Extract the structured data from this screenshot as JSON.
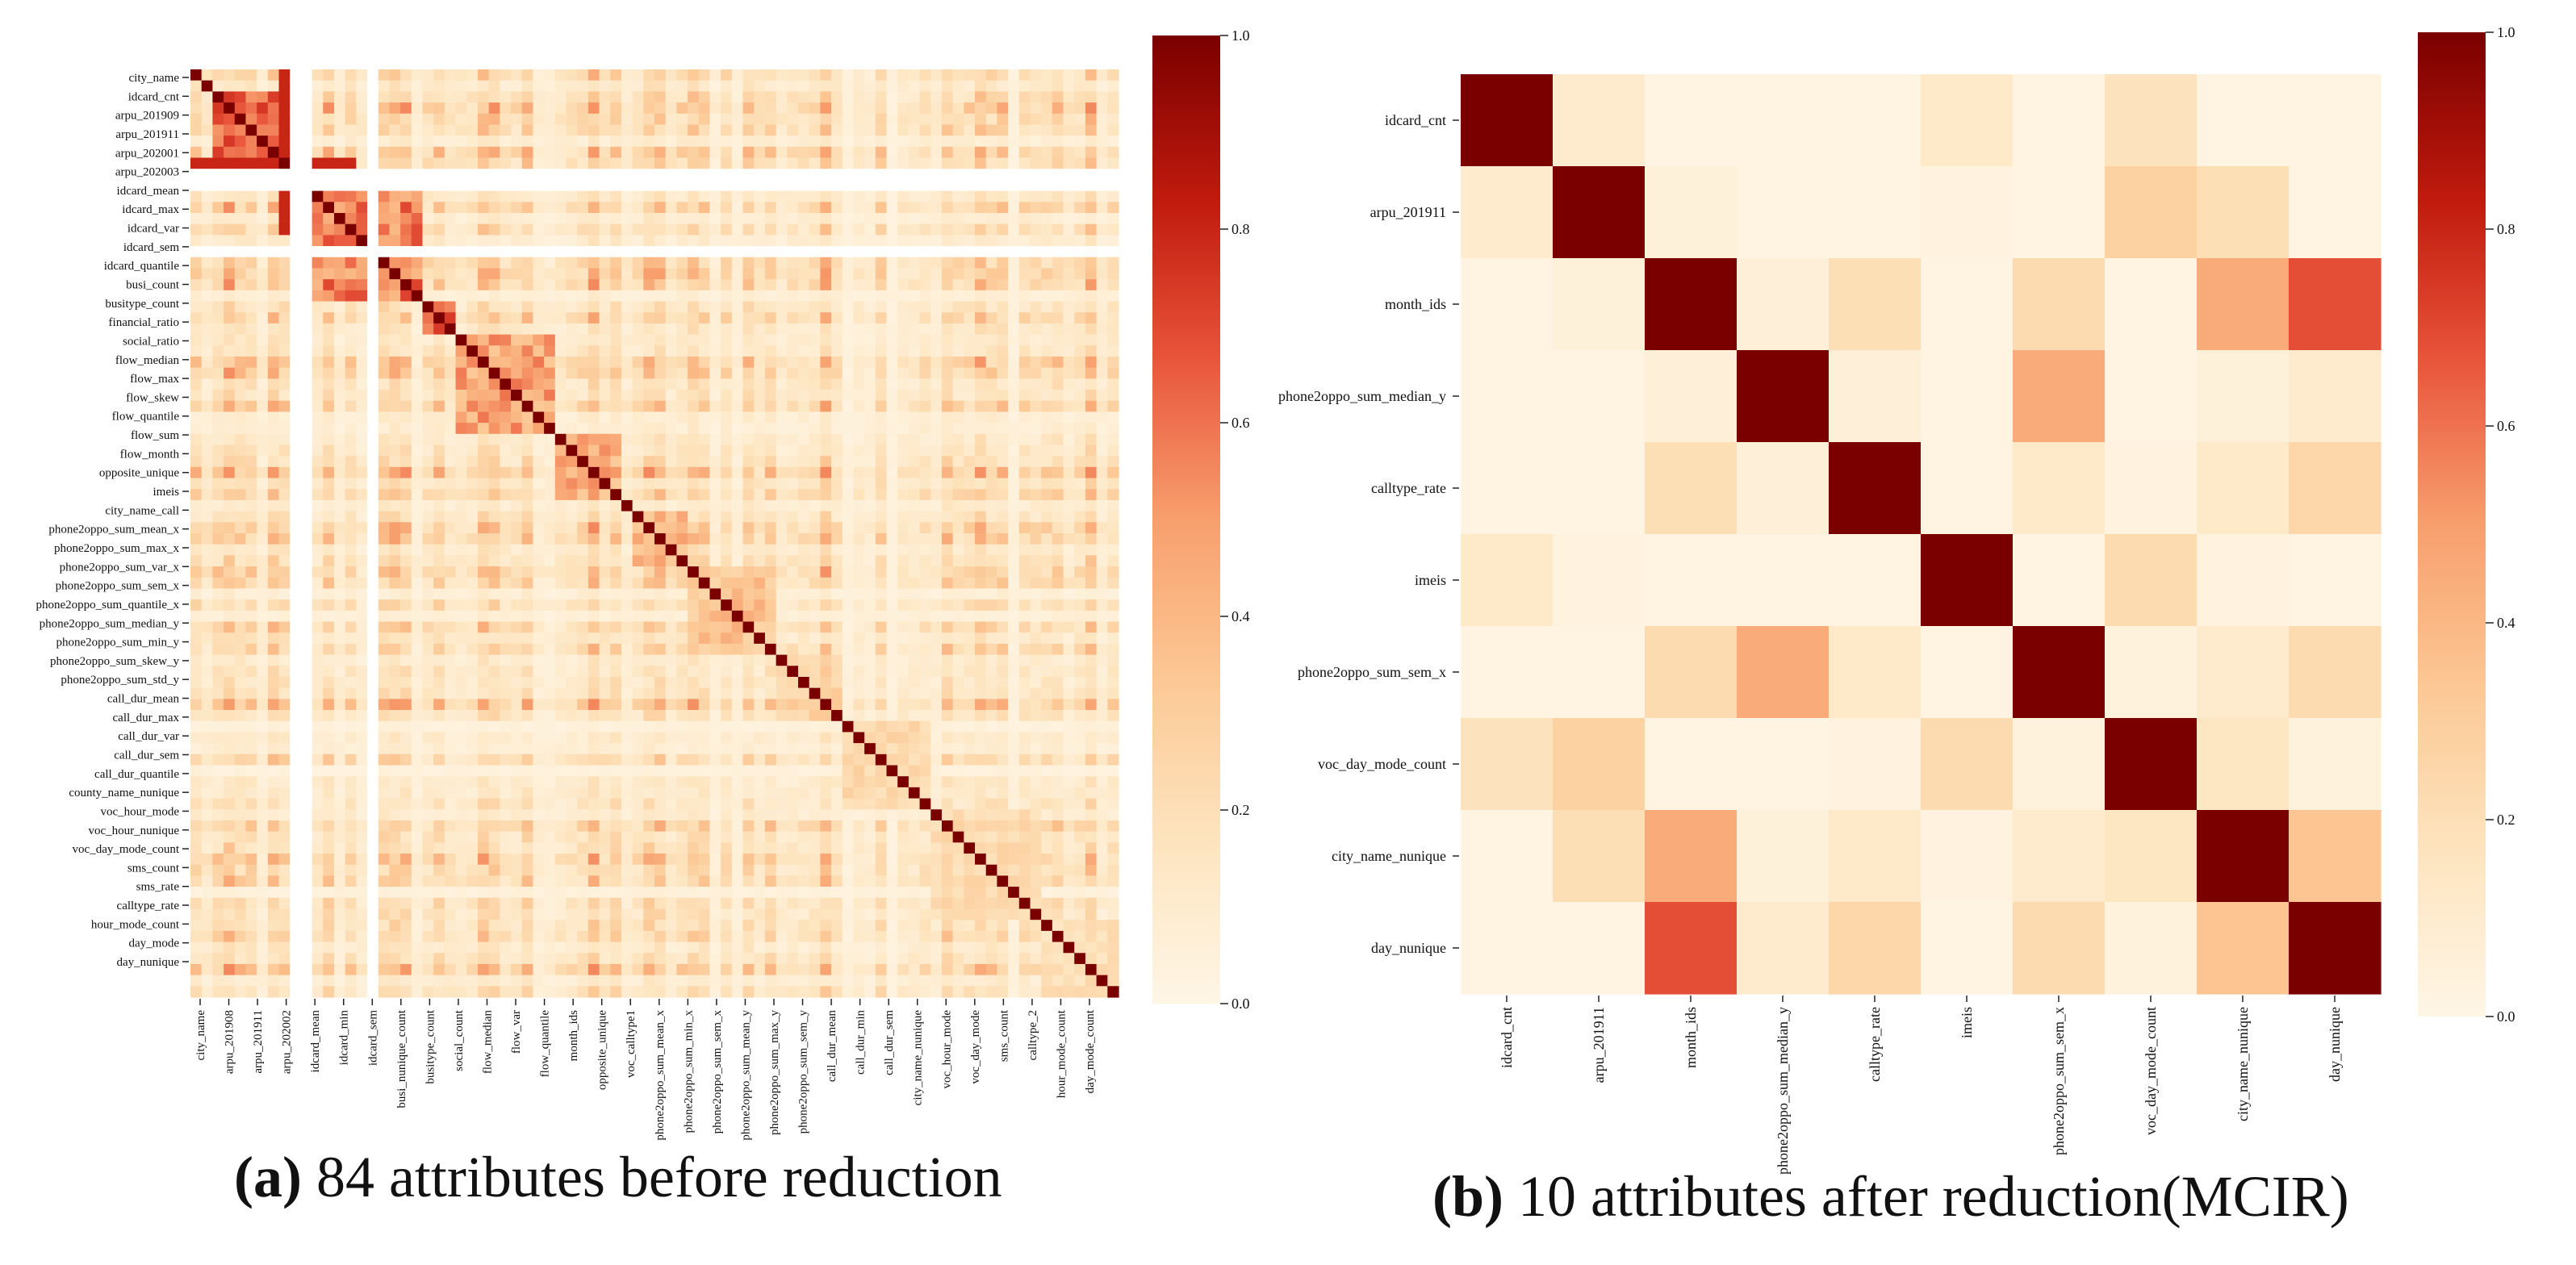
{
  "colors": {
    "scale": [
      "#fff6e6",
      "#fde4be",
      "#fcc996",
      "#f79f6d",
      "#e8533a",
      "#c01a0d",
      "#7a0000"
    ],
    "blank": "#ffffff"
  },
  "chart_data": [
    {
      "type": "heatmap",
      "id": "a",
      "caption_letter": "(a)",
      "caption_text": " 84 attributes before reduction",
      "n": 84,
      "ylabels": [
        "city_name",
        "idcard_cnt",
        "arpu_201909",
        "arpu_201911",
        "arpu_202001",
        "arpu_202003",
        "idcard_mean",
        "idcard_max",
        "idcard_var",
        "idcard_sem",
        "idcard_quantile",
        "busi_count",
        "busitype_count",
        "financial_ratio",
        "social_ratio",
        "flow_median",
        "flow_max",
        "flow_skew",
        "flow_quantile",
        "flow_sum",
        "flow_month",
        "opposite_unique",
        "imeis",
        "city_name_call",
        "phone2oppo_sum_mean_x",
        "phone2oppo_sum_max_x",
        "phone2oppo_sum_var_x",
        "phone2oppo_sum_sem_x",
        "phone2oppo_sum_quantile_x",
        "phone2oppo_sum_median_y",
        "phone2oppo_sum_min_y",
        "phone2oppo_sum_skew_y",
        "phone2oppo_sum_std_y",
        "call_dur_mean",
        "call_dur_max",
        "call_dur_var",
        "call_dur_sem",
        "call_dur_quantile",
        "county_name_nunique",
        "voc_hour_mode",
        "voc_hour_nunique",
        "voc_day_mode_count",
        "sms_count",
        "sms_rate",
        "calltype_rate",
        "hour_mode_count",
        "day_mode",
        "day_nunique"
      ],
      "xlabels": [
        "city_name",
        "arpu_201908",
        "arpu_201911",
        "arpu_202002",
        "idcard_mean",
        "idcard_min",
        "idcard_sem",
        "busi_nunique_count",
        "busitype_count",
        "social_count",
        "flow_median",
        "flow_var",
        "flow_quantile",
        "month_ids",
        "opposite_unique",
        "voc_calltype1",
        "phone2oppo_sum_mean_x",
        "phone2oppo_sum_min_x",
        "phone2oppo_sum_sem_x",
        "phone2oppo_sum_mean_y",
        "phone2oppo_sum_max_y",
        "phone2oppo_sum_sem_y",
        "call_dur_mean",
        "call_dur_min",
        "call_dur_sem",
        "city_name_nunique",
        "voc_hour_mode",
        "voc_day_mode",
        "sms_count",
        "calltype_2",
        "hour_mode_count",
        "day_mode_count"
      ],
      "blank_indices": [
        9,
        10,
        16
      ],
      "colorbar_ticks": [
        "1.0",
        "0.8",
        "0.6",
        "0.4",
        "0.2",
        "0.0"
      ]
    },
    {
      "type": "heatmap",
      "id": "b",
      "caption_letter": "(b)",
      "caption_text": " 10 attributes after reduction(MCIR)",
      "labels": [
        "idcard_cnt",
        "arpu_201911",
        "month_ids",
        "phone2oppo_sum_median_y",
        "calltype_rate",
        "imeis",
        "phone2oppo_sum_sem_x",
        "voc_day_mode_count",
        "city_name_nunique",
        "day_nunique"
      ],
      "values": [
        [
          1.0,
          0.1,
          0.02,
          0.02,
          0.02,
          0.12,
          0.02,
          0.17,
          0.02,
          0.02
        ],
        [
          0.1,
          1.0,
          0.05,
          0.02,
          0.02,
          0.03,
          0.02,
          0.28,
          0.2,
          0.02
        ],
        [
          0.02,
          0.05,
          1.0,
          0.06,
          0.2,
          0.02,
          0.22,
          0.02,
          0.45,
          0.68
        ],
        [
          0.02,
          0.02,
          0.06,
          1.0,
          0.06,
          0.02,
          0.45,
          0.02,
          0.05,
          0.1
        ],
        [
          0.02,
          0.02,
          0.2,
          0.06,
          1.0,
          0.02,
          0.12,
          0.03,
          0.12,
          0.25
        ],
        [
          0.12,
          0.03,
          0.02,
          0.02,
          0.02,
          1.0,
          0.02,
          0.22,
          0.03,
          0.02
        ],
        [
          0.02,
          0.02,
          0.22,
          0.45,
          0.12,
          0.02,
          1.0,
          0.04,
          0.1,
          0.22
        ],
        [
          0.17,
          0.28,
          0.02,
          0.02,
          0.03,
          0.22,
          0.04,
          1.0,
          0.15,
          0.04
        ],
        [
          0.02,
          0.2,
          0.45,
          0.05,
          0.12,
          0.03,
          0.1,
          0.15,
          1.0,
          0.35
        ],
        [
          0.02,
          0.02,
          0.68,
          0.1,
          0.25,
          0.02,
          0.22,
          0.04,
          0.35,
          1.0
        ]
      ],
      "colorbar_ticks": [
        "1.0",
        "0.8",
        "0.6",
        "0.4",
        "0.2",
        "0.0"
      ]
    }
  ]
}
